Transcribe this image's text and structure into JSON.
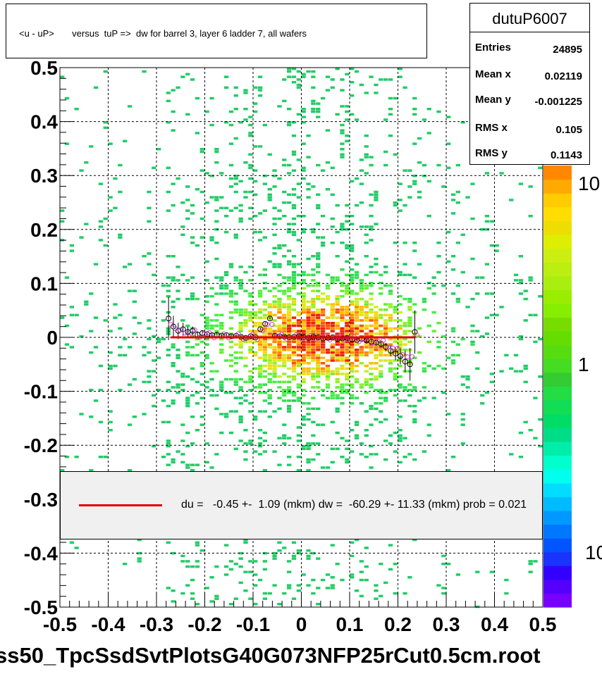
{
  "chart_data": {
    "type": "heatmap",
    "title": "<u - uP>       versus  tuP =>  dw for barrel 3, layer 6 ladder 7, all wafers",
    "xlim": [
      -0.5,
      0.5
    ],
    "ylim": [
      -0.5,
      0.5
    ],
    "xticks": [
      "-0.5",
      "-0.4",
      "-0.3",
      "-0.2",
      "-0.1",
      "0",
      "0.1",
      "0.2",
      "0.3",
      "0.4",
      "0.5"
    ],
    "yticks": [
      "0.5",
      "0.4",
      "0.3",
      "0.2",
      "0.1",
      "0",
      "-0.1",
      "-0.2",
      "-0.3",
      "-0.4",
      "-0.5"
    ],
    "colorbar_labels": [
      "10",
      "1",
      "10"
    ],
    "grid": true,
    "z_scale": "log",
    "profile_points": {
      "x": [
        -0.275,
        -0.265,
        -0.255,
        -0.245,
        -0.235,
        -0.225,
        -0.215,
        -0.205,
        -0.195,
        -0.185,
        -0.175,
        -0.165,
        -0.155,
        -0.145,
        -0.135,
        -0.125,
        -0.115,
        -0.105,
        -0.095,
        -0.085,
        -0.075,
        -0.065,
        -0.055,
        -0.045,
        -0.035,
        -0.025,
        -0.015,
        -0.005,
        0.005,
        0.015,
        0.025,
        0.035,
        0.045,
        0.055,
        0.065,
        0.075,
        0.085,
        0.095,
        0.105,
        0.115,
        0.125,
        0.135,
        0.145,
        0.155,
        0.165,
        0.175,
        0.185,
        0.195,
        0.205,
        0.215,
        0.225,
        0.235
      ],
      "y": [
        0.035,
        0.02,
        0.012,
        0.015,
        0.01,
        0.012,
        0.005,
        0.008,
        0.006,
        0.004,
        0.005,
        0.003,
        0.004,
        0.002,
        0.003,
        0.001,
        -0.001,
        0.002,
        0.0,
        0.015,
        0.025,
        0.035,
        0.003,
        0.002,
        0.001,
        0.0,
        0.001,
        0.002,
        0.0,
        -0.001,
        0.001,
        0.0,
        -0.002,
        -0.001,
        0.0,
        -0.003,
        -0.002,
        -0.001,
        -0.004,
        -0.005,
        -0.003,
        -0.006,
        -0.008,
        -0.01,
        -0.012,
        -0.018,
        -0.025,
        -0.03,
        -0.035,
        -0.045,
        -0.05,
        0.01
      ],
      "err": [
        0.04,
        0.02,
        0.015,
        0.012,
        0.01,
        0.008,
        0.006,
        0.005,
        0.005,
        0.004,
        0.004,
        0.004,
        0.003,
        0.003,
        0.003,
        0.003,
        0.003,
        0.003,
        0.003,
        0.003,
        0.003,
        0.003,
        0.003,
        0.003,
        0.003,
        0.003,
        0.003,
        0.003,
        0.003,
        0.003,
        0.003,
        0.003,
        0.003,
        0.003,
        0.003,
        0.003,
        0.003,
        0.003,
        0.003,
        0.003,
        0.003,
        0.004,
        0.004,
        0.005,
        0.006,
        0.008,
        0.01,
        0.012,
        0.015,
        0.02,
        0.03,
        0.04
      ]
    },
    "fit_line": {
      "x": [
        -0.27,
        0.235
      ],
      "y": [
        0.0,
        0.0
      ],
      "color": "#e00000"
    }
  },
  "title": "<u - uP>       versus  tuP =>  dw for barrel 3, layer 6 ladder 7, all wafers",
  "stats": {
    "name": "dutuP6007",
    "rows": [
      {
        "key": "Entries",
        "value": "24895"
      },
      {
        "key": "Mean x",
        "value": "0.02119"
      },
      {
        "key": "Mean y",
        "value": "-0.001225"
      },
      {
        "key": "RMS x",
        "value": "0.105"
      },
      {
        "key": "RMS y",
        "value": "0.1143"
      }
    ]
  },
  "legend": {
    "text": "du =   -0.45 +-  1.09 (mkm) dw =  -60.29 +- 11.33 (mkm) prob = 0.021",
    "line_color": "#e00000"
  },
  "footer": "ss50_TpcSsdSvtPlotsG40G073NFP25rCut0.5cm.root"
}
